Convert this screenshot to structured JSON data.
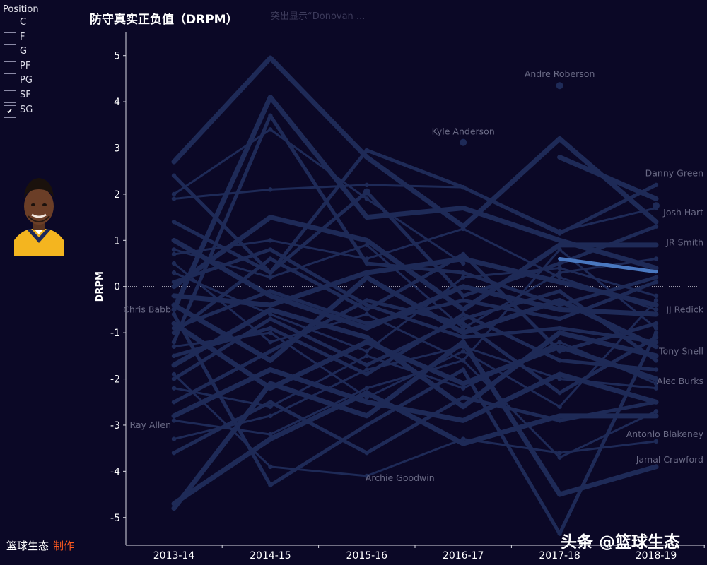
{
  "filter": {
    "title": "Position",
    "options": [
      {
        "label": "C",
        "checked": false
      },
      {
        "label": "F",
        "checked": false
      },
      {
        "label": "G",
        "checked": false
      },
      {
        "label": "PF",
        "checked": false
      },
      {
        "label": "PG",
        "checked": false
      },
      {
        "label": "SF",
        "checked": false
      },
      {
        "label": "SG",
        "checked": true
      }
    ]
  },
  "header": {
    "title": "防守真实正负值（DRPM）",
    "highlight_note": "突出显示“Donovan ..."
  },
  "footer": {
    "credit": "篮球生态",
    "maker": "制作",
    "watermark": "头条 @篮球生态"
  },
  "colors": {
    "background": "#0b0826",
    "line": "#1e2a57",
    "highlight": "#4a78c0",
    "label": "#6a6a85",
    "accent": "#ff5a1f"
  },
  "avatar": {
    "icon": "player-portrait-icon"
  },
  "chart_data": {
    "type": "line",
    "title": "防守真实正负值（DRPM）",
    "xlabel": "",
    "ylabel": "DRPM",
    "categories": [
      "2013-14",
      "2014-15",
      "2015-16",
      "2016-17",
      "2017-18",
      "2018-19"
    ],
    "yticks": [
      5,
      4,
      3,
      2,
      1,
      0,
      -1,
      -2,
      -3,
      -4,
      -5
    ],
    "ylim": [
      -5.6,
      5.5
    ],
    "highlight_series": {
      "values": [
        null,
        null,
        null,
        null,
        0.6,
        0.32
      ]
    },
    "series": [
      {
        "values": [
          2.7,
          4.95,
          2.8,
          1.3,
          3.2,
          1.4
        ]
      },
      {
        "values": [
          2.4,
          0.3,
          2.95,
          2.15,
          1.15,
          2.2
        ]
      },
      {
        "values": [
          1.9,
          2.1,
          2.2,
          2.15,
          1.2,
          1.7
        ]
      },
      {
        "values": [
          -0.5,
          4.1,
          1.5,
          1.7,
          1.0,
          0.4
        ]
      },
      {
        "values": [
          -1.2,
          3.7,
          0.5,
          0.3,
          -0.4,
          0.2
        ]
      },
      {
        "values": [
          2.0,
          3.4,
          1.9,
          0.5,
          null,
          null
        ]
      },
      {
        "values": [
          null,
          null,
          null,
          null,
          2.8,
          1.9
        ]
      },
      {
        "values": [
          1.4,
          0.3,
          2.05,
          -0.2,
          0.5,
          1.3
        ]
      },
      {
        "values": [
          0.7,
          1.0,
          0.6,
          1.25,
          0.2,
          -0.5
        ]
      },
      {
        "values": [
          0.0,
          1.5,
          1.0,
          -0.5,
          0.9,
          0.9
        ]
      },
      {
        "values": [
          -1.0,
          0.6,
          -0.5,
          0.7,
          -1.4,
          -0.8
        ]
      },
      {
        "values": [
          0.3,
          -0.6,
          -1.4,
          0.2,
          0.4,
          -0.2
        ]
      },
      {
        "values": [
          -0.4,
          -1.6,
          0.2,
          -1.0,
          -0.3,
          -1.3
        ]
      },
      {
        "values": [
          -1.5,
          -0.9,
          -1.9,
          -0.6,
          -1.6,
          -1.8
        ]
      },
      {
        "values": [
          -2.2,
          -2.6,
          -1.5,
          -2.2,
          -1.2,
          -2.1
        ]
      },
      {
        "values": [
          -2.8,
          -1.8,
          -2.5,
          -2.9,
          -1.9,
          -2.5
        ]
      },
      {
        "values": [
          -3.6,
          -2.5,
          -3.6,
          -2.4,
          -2.9,
          -2.5
        ]
      },
      {
        "values": [
          -2.9,
          -3.2,
          -2.2,
          -1.6,
          -3.7,
          -2.7
        ]
      },
      {
        "values": [
          -4.8,
          -2.1,
          -2.8,
          -1.2,
          -4.5,
          -3.9
        ]
      },
      {
        "values": [
          -0.6,
          -4.3,
          -3.0,
          -1.8,
          -5.35,
          -1.0
        ]
      },
      {
        "values": [
          -1.9,
          -3.9,
          -4.1,
          -3.3,
          -3.6,
          -3.35
        ]
      },
      {
        "values": [
          -0.2,
          -0.4,
          0.3,
          0.6,
          0.1,
          -0.4
        ]
      },
      {
        "values": [
          -0.9,
          -0.1,
          -0.8,
          -0.3,
          -0.7,
          0.1
        ]
      },
      {
        "values": [
          0.5,
          -1.2,
          -0.6,
          -1.6,
          0.8,
          -0.9
        ]
      },
      {
        "values": [
          -1.7,
          -0.5,
          -1.1,
          -2.6,
          -1.0,
          -1.5
        ]
      },
      {
        "values": [
          -2.5,
          -1.4,
          -0.3,
          -0.8,
          -2.3,
          -1.1
        ]
      },
      {
        "values": [
          -3.3,
          -2.8,
          -1.8,
          -1.3,
          -2.0,
          -2.2
        ]
      },
      {
        "values": [
          1.0,
          -0.2,
          -0.9,
          0.0,
          -0.5,
          -0.6
        ]
      },
      {
        "values": [
          0.1,
          0.8,
          -0.4,
          -1.1,
          -0.9,
          -1.2
        ]
      },
      {
        "values": [
          -1.3,
          -1.0,
          -2.4,
          -1.4,
          -2.6,
          -0.3
        ]
      },
      {
        "values": [
          -0.8,
          -2.2,
          -1.2,
          -2.1,
          -1.3,
          -2.0
        ]
      },
      {
        "values": [
          -2.0,
          -0.7,
          -1.7,
          -0.7,
          -0.1,
          -1.6
        ]
      },
      {
        "values": [
          0.8,
          0.2,
          0.9,
          -0.9,
          0.3,
          0.6
        ]
      },
      {
        "values": [
          -4.7,
          -3.3,
          -2.3,
          -3.4,
          -2.8,
          -2.8
        ]
      }
    ],
    "points": [
      {
        "x": "2016-17",
        "y": 3.12
      },
      {
        "x": "2017-18",
        "y": 4.35
      },
      {
        "x": "2015-16",
        "y": 2.05
      },
      {
        "x": "2018-19",
        "y": 1.75
      }
    ],
    "point_labels": [
      {
        "text": "Andre Roberson",
        "x": "2017-18",
        "y": 4.6,
        "anchor": "middle"
      },
      {
        "text": "Kyle Anderson",
        "x": "2016-17",
        "y": 3.35,
        "anchor": "middle"
      },
      {
        "text": "Danny Green",
        "x": "2018-19",
        "y": 2.45,
        "anchor": "right"
      },
      {
        "text": "Josh Hart",
        "x": "2018-19",
        "y": 1.6,
        "anchor": "right"
      },
      {
        "text": "JR Smith",
        "x": "2018-19",
        "y": 0.95,
        "anchor": "right"
      },
      {
        "text": "JJ Redick",
        "x": "2018-19",
        "y": -0.5,
        "anchor": "right"
      },
      {
        "text": "Tony Snell",
        "x": "2018-19",
        "y": -1.4,
        "anchor": "right"
      },
      {
        "text": "Alec Burks",
        "x": "2018-19",
        "y": -2.05,
        "anchor": "right"
      },
      {
        "text": "Antonio Blakeney",
        "x": "2018-19",
        "y": -3.2,
        "anchor": "right"
      },
      {
        "text": "Jamal Crawford",
        "x": "2018-19",
        "y": -3.75,
        "anchor": "right"
      },
      {
        "text": "Archie Goodwin",
        "x": "2015-16",
        "y": -4.15,
        "anchor": "left"
      },
      {
        "text": "Chris Babb",
        "x": "2013-14",
        "y": -0.5,
        "anchor": "outside"
      },
      {
        "text": "Ray Allen",
        "x": "2013-14",
        "y": -3.0,
        "anchor": "outside"
      }
    ]
  }
}
